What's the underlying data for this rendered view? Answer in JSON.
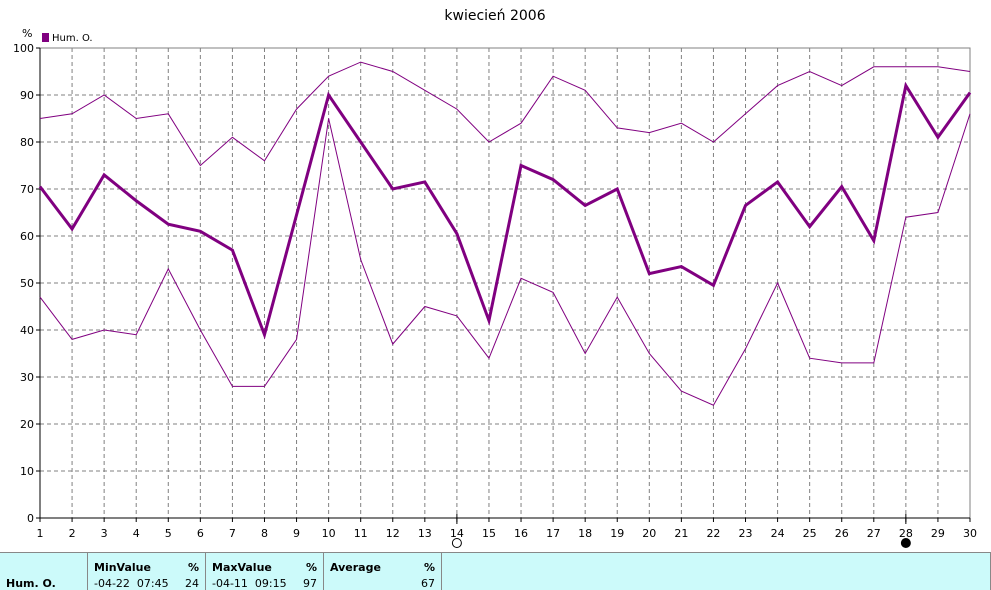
{
  "chart_data": {
    "type": "line",
    "title": "kwiecień 2006",
    "ylabel": "%",
    "ylim": [
      0,
      100
    ],
    "yticks": [
      0,
      10,
      20,
      30,
      40,
      50,
      60,
      70,
      80,
      90,
      100
    ],
    "x": [
      1,
      2,
      3,
      4,
      5,
      6,
      7,
      8,
      9,
      10,
      11,
      12,
      13,
      14,
      15,
      16,
      17,
      18,
      19,
      20,
      21,
      22,
      23,
      24,
      25,
      26,
      27,
      28,
      29,
      30
    ],
    "legend": [
      {
        "name": "Hum. O.",
        "color": "#800080"
      }
    ],
    "series": [
      {
        "name": "Hum. O.",
        "role": "average",
        "color": "#800080",
        "values": [
          70.5,
          61.5,
          73,
          67.5,
          62.5,
          61,
          57,
          39,
          64.5,
          90,
          80,
          70,
          71.5,
          60.5,
          42,
          75,
          72,
          66.5,
          70,
          52,
          53.5,
          49.5,
          66.5,
          71.5,
          62,
          70.5,
          59,
          92,
          81,
          90.5
        ]
      },
      {
        "role": "max",
        "color": "#800080",
        "values": [
          85,
          86,
          90,
          85,
          86,
          75,
          81,
          76,
          87,
          94,
          97,
          95,
          91,
          87,
          80,
          84,
          94,
          91,
          83,
          82,
          84,
          80,
          86,
          92,
          95,
          92,
          96,
          96,
          96,
          95
        ]
      },
      {
        "role": "min",
        "color": "#800080",
        "values": [
          47,
          38,
          40,
          39,
          53,
          40,
          28,
          28,
          38,
          85,
          55,
          37,
          45,
          43,
          34,
          51,
          48,
          35,
          47,
          35,
          27,
          24,
          36,
          50,
          34,
          33,
          33,
          64,
          65,
          86
        ]
      }
    ],
    "markers": [
      {
        "x": 14,
        "symbol": "empty-circle"
      },
      {
        "x": 28,
        "symbol": "filled-circle"
      }
    ]
  },
  "stats": {
    "series_label": "Hum. O.",
    "min_header": "MinValue",
    "min_unit": "%",
    "min_date": "-04-22  07:45",
    "min_value": "24",
    "max_header": "MaxValue",
    "max_unit": "%",
    "max_date": "-04-11  09:15",
    "max_value": "97",
    "avg_header": "Average",
    "avg_unit": "%",
    "avg_value": "67"
  }
}
